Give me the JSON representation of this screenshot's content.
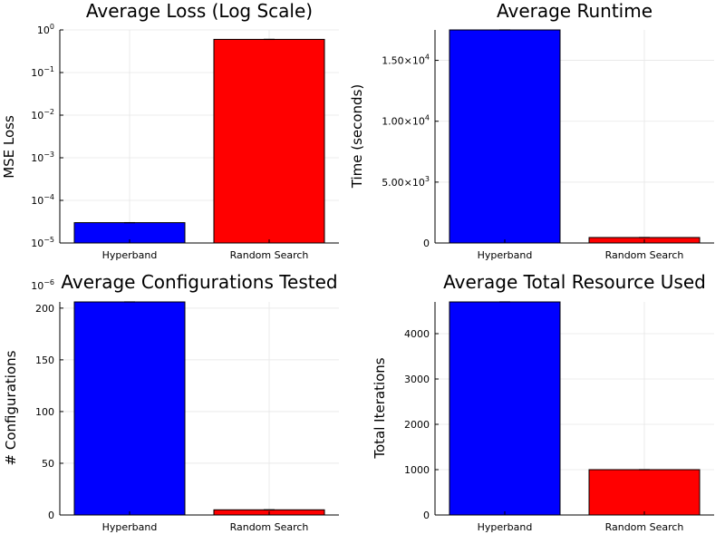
{
  "chart_data": [
    {
      "type": "bar",
      "title": "Average Loss (Log Scale)",
      "ylabel": "MSE Loss",
      "scale": "log",
      "ylim": [
        1e-05,
        1
      ],
      "grid": true,
      "categories": [
        "Hyperband",
        "Random Search"
      ],
      "values": [
        3e-05,
        0.6
      ],
      "colors": [
        "#0000ff",
        "#ff0000"
      ],
      "yticks": [
        {
          "base": "10",
          "exp": "0",
          "value": 1
        },
        {
          "base": "10",
          "exp": "−1",
          "value": 0.1
        },
        {
          "base": "10",
          "exp": "−2",
          "value": 0.01
        },
        {
          "base": "10",
          "exp": "−3",
          "value": 0.001
        },
        {
          "base": "10",
          "exp": "−4",
          "value": 0.0001
        },
        {
          "base": "10",
          "exp": "−5",
          "value": 1e-05
        },
        {
          "base": "10",
          "exp": "−6",
          "value": 1e-06
        }
      ]
    },
    {
      "type": "bar",
      "title": "Average Runtime",
      "ylabel": "Time (seconds)",
      "scale": "linear",
      "ylim": [
        0,
        17500
      ],
      "grid": true,
      "categories": [
        "Hyperband",
        "Random Search"
      ],
      "values": [
        17500,
        450
      ],
      "colors": [
        "#0000ff",
        "#ff0000"
      ],
      "yticks": [
        {
          "base": "0",
          "exp": "",
          "value": 0
        },
        {
          "base": "5.00×10",
          "exp": "3",
          "value": 5000
        },
        {
          "base": "1.00×10",
          "exp": "4",
          "value": 10000
        },
        {
          "base": "1.50×10",
          "exp": "4",
          "value": 15000
        }
      ]
    },
    {
      "type": "bar",
      "title": "Average Configurations Tested",
      "ylabel": "# Configurations",
      "scale": "linear",
      "ylim": [
        0,
        206
      ],
      "grid": true,
      "categories": [
        "Hyperband",
        "Random Search"
      ],
      "values": [
        206,
        5
      ],
      "colors": [
        "#0000ff",
        "#ff0000"
      ],
      "yticks": [
        {
          "base": "0",
          "exp": "",
          "value": 0
        },
        {
          "base": "50",
          "exp": "",
          "value": 50
        },
        {
          "base": "100",
          "exp": "",
          "value": 100
        },
        {
          "base": "150",
          "exp": "",
          "value": 150
        },
        {
          "base": "200",
          "exp": "",
          "value": 200
        }
      ]
    },
    {
      "type": "bar",
      "title": "Average Total Resource Used",
      "ylabel": "Total Iterations",
      "scale": "linear",
      "ylim": [
        0,
        4700
      ],
      "grid": true,
      "categories": [
        "Hyperband",
        "Random Search"
      ],
      "values": [
        4700,
        1000
      ],
      "colors": [
        "#0000ff",
        "#ff0000"
      ],
      "yticks": [
        {
          "base": "0",
          "exp": "",
          "value": 0
        },
        {
          "base": "1000",
          "exp": "",
          "value": 1000
        },
        {
          "base": "2000",
          "exp": "",
          "value": 2000
        },
        {
          "base": "3000",
          "exp": "",
          "value": 3000
        },
        {
          "base": "4000",
          "exp": "",
          "value": 4000
        }
      ]
    }
  ]
}
